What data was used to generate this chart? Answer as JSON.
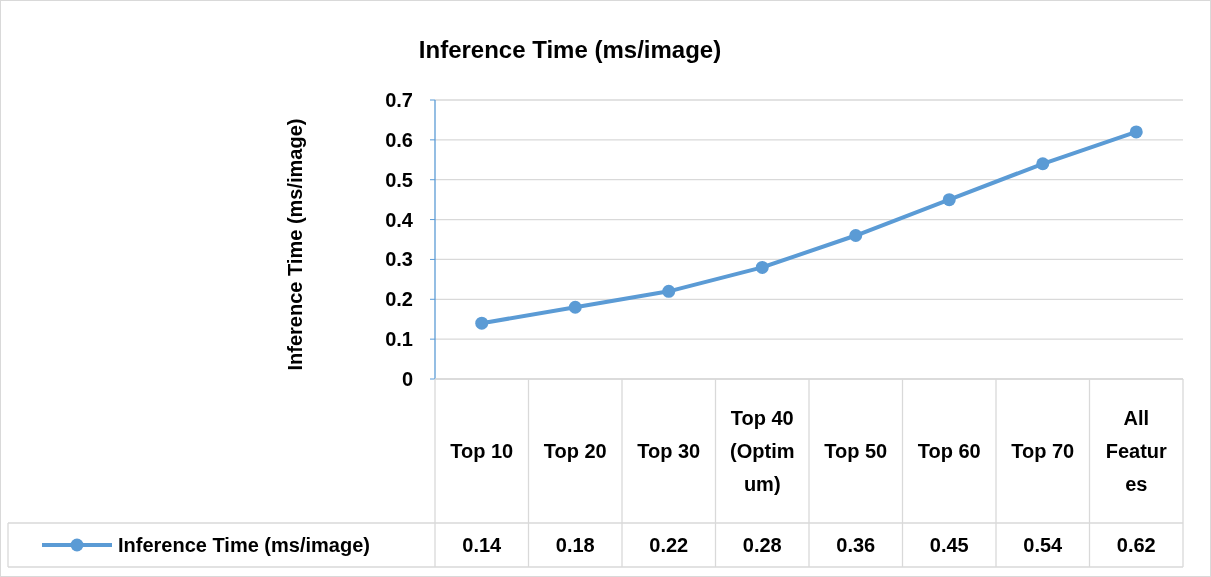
{
  "chart_data": {
    "type": "line",
    "title": "Inference Time (ms/image)",
    "ylabel": "Inference Time (ms/image)",
    "categories": [
      "Top 10",
      "Top 20",
      "Top 30",
      "Top 40 (Optimum)",
      "Top 50",
      "Top 60",
      "Top 70",
      "All Features"
    ],
    "series": [
      {
        "name": "Inference Time (ms/image)",
        "color": "#5b9bd5",
        "values": [
          0.14,
          0.18,
          0.22,
          0.28,
          0.36,
          0.45,
          0.54,
          0.62
        ]
      }
    ],
    "ylim": [
      0,
      0.7
    ],
    "yticks": [
      0,
      0.1,
      0.2,
      0.3,
      0.4,
      0.5,
      0.6,
      0.7
    ],
    "grid": "y",
    "legend": "bottom",
    "marker": "circle",
    "line_style": "solid",
    "data_labels": true
  }
}
